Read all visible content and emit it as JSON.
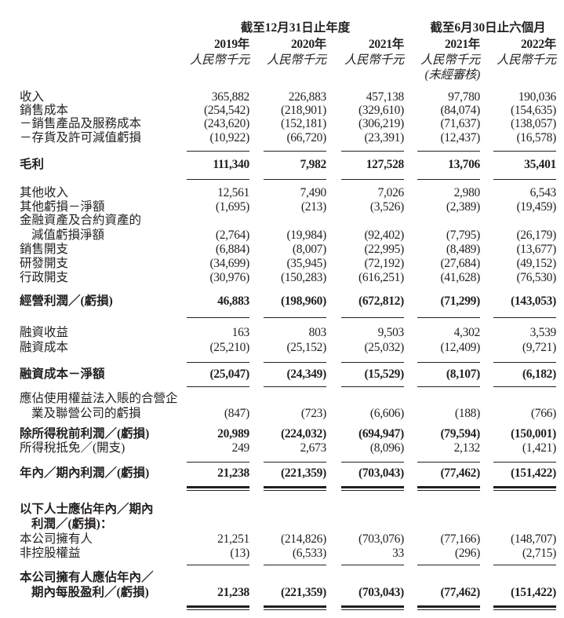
{
  "header": {
    "groups": [
      "截至12月31日止年度",
      "截至6月30日止六個月"
    ],
    "years": [
      "2019年",
      "2020年",
      "2021年",
      "2021年",
      "2022年"
    ],
    "unit": "人民幣千元",
    "unaudited_note": "(未經審核)"
  },
  "rows": [
    {
      "label": [
        "收入"
      ],
      "values": [
        "365,882",
        "226,883",
        "457,138",
        "97,780",
        "190,036"
      ]
    },
    {
      "label": [
        "銷售成本"
      ],
      "values": [
        "(254,542)",
        "(218,901)",
        "(329,610)",
        "(84,074)",
        "(154,635)"
      ]
    },
    {
      "label": [
        "－銷售產品及服務成本"
      ],
      "values": [
        "(243,620)",
        "(152,181)",
        "(306,219)",
        "(71,637)",
        "(138,057)"
      ]
    },
    {
      "label": [
        "－存貨及許可減值虧損"
      ],
      "values": [
        "(10,922)",
        "(66,720)",
        "(23,391)",
        "(12,437)",
        "(16,578)"
      ]
    },
    {
      "label": [
        "毛利"
      ],
      "values": [
        "111,340",
        "7,982",
        "127,528",
        "13,706",
        "35,401"
      ],
      "bold": true
    },
    {
      "label": [
        "其他收入"
      ],
      "values": [
        "12,561",
        "7,490",
        "7,026",
        "2,980",
        "6,543"
      ]
    },
    {
      "label": [
        "其他虧損－淨額"
      ],
      "values": [
        "(1,695)",
        "(213)",
        "(3,526)",
        "(2,389)",
        "(19,459)"
      ]
    },
    {
      "label": [
        "金融資產及合約資產的",
        "減值虧損淨額"
      ],
      "values": [
        "(2,764)",
        "(19,984)",
        "(92,402)",
        "(7,795)",
        "(26,179)"
      ]
    },
    {
      "label": [
        "銷售開支"
      ],
      "values": [
        "(6,884)",
        "(8,007)",
        "(22,995)",
        "(8,489)",
        "(13,677)"
      ]
    },
    {
      "label": [
        "研發開支"
      ],
      "values": [
        "(34,699)",
        "(35,945)",
        "(72,192)",
        "(27,684)",
        "(49,152)"
      ]
    },
    {
      "label": [
        "行政開支"
      ],
      "values": [
        "(30,976)",
        "(150,283)",
        "(616,251)",
        "(41,628)",
        "(76,530)"
      ]
    },
    {
      "label": [
        "經營利潤／(虧損)"
      ],
      "values": [
        "46,883",
        "(198,960)",
        "(672,812)",
        "(71,299)",
        "(143,053)"
      ],
      "bold": true
    },
    {
      "label": [
        "融資收益"
      ],
      "values": [
        "163",
        "803",
        "9,503",
        "4,302",
        "3,539"
      ]
    },
    {
      "label": [
        "融資成本"
      ],
      "values": [
        "(25,210)",
        "(25,152)",
        "(25,032)",
        "(12,409)",
        "(9,721)"
      ]
    },
    {
      "label": [
        "融資成本－淨額"
      ],
      "values": [
        "(25,047)",
        "(24,349)",
        "(15,529)",
        "(8,107)",
        "(6,182)"
      ],
      "bold": true
    },
    {
      "label": [
        "應佔使用權益法入賬的合營企",
        "業及聯營公司的虧損"
      ],
      "values": [
        "(847)",
        "(723)",
        "(6,606)",
        "(188)",
        "(766)"
      ]
    },
    {
      "label": [
        "除所得稅前利潤／(虧損)"
      ],
      "values": [
        "20,989",
        "(224,032)",
        "(694,947)",
        "(79,594)",
        "(150,001)"
      ],
      "bold": true
    },
    {
      "label": [
        "所得稅抵免／(開支)"
      ],
      "values": [
        "249",
        "2,673",
        "(8,096)",
        "2,132",
        "(1,421)"
      ]
    },
    {
      "label": [
        "年內／期內利潤／(虧損)"
      ],
      "values": [
        "21,238",
        "(221,359)",
        "(703,043)",
        "(77,462)",
        "(151,422)"
      ],
      "bold": true
    },
    {
      "label": [
        "以下人士應佔年內／期內",
        "利潤／(虧損)："
      ],
      "values": [],
      "bold": true
    },
    {
      "label": [
        "本公司擁有人"
      ],
      "values": [
        "21,251",
        "(214,826)",
        "(703,076)",
        "(77,166)",
        "(148,707)"
      ]
    },
    {
      "label": [
        "非控股權益"
      ],
      "values": [
        "(13)",
        "(6,533)",
        "33",
        "(296)",
        "(2,715)"
      ]
    },
    {
      "label": [
        "本公司擁有人應佔年內／",
        "期內每股盈利／(虧損)"
      ],
      "values": [
        "21,238",
        "(221,359)",
        "(703,043)",
        "(77,462)",
        "(151,422)"
      ],
      "bold": true
    }
  ]
}
